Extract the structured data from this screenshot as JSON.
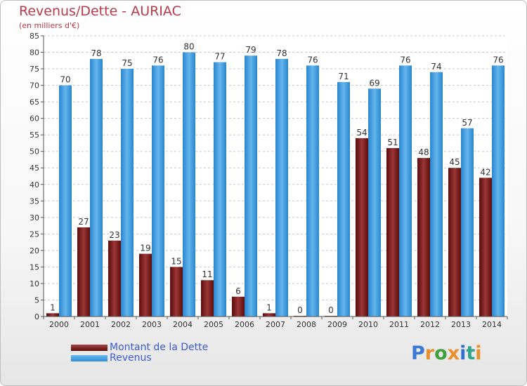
{
  "header": {
    "title": "Revenus/Dette - AURIAC",
    "subtitle": "(en milliers d'€)"
  },
  "brand": {
    "letters": [
      "P",
      "r",
      "o",
      "x",
      "i",
      "t",
      "i"
    ],
    "colors": [
      "#3a78d4",
      "#e8912a",
      "#3fa33a",
      "#e8912a",
      "#2f6fcf",
      "#2fa68a",
      "#e8912a"
    ]
  },
  "chart_data": {
    "type": "bar",
    "title": "Revenus/Dette - AURIAC",
    "ylabel": "(en milliers d'€)",
    "xlabel": "",
    "ylim": [
      0,
      85
    ],
    "ytick_step": 5,
    "grid": true,
    "categories": [
      "2000",
      "2001",
      "2002",
      "2003",
      "2004",
      "2005",
      "2006",
      "2007",
      "2008",
      "2009",
      "2010",
      "2011",
      "2012",
      "2013",
      "2014"
    ],
    "series": [
      {
        "name": "Montant de la Dette",
        "color": "#7a1f1f",
        "values": [
          1,
          27,
          23,
          19,
          15,
          11,
          6,
          1,
          0,
          0,
          54,
          51,
          48,
          45,
          42
        ]
      },
      {
        "name": "Revenus",
        "color": "#3d9ae0",
        "values": [
          70,
          78,
          75,
          76,
          80,
          77,
          79,
          78,
          76,
          71,
          69,
          76,
          74,
          57,
          76
        ]
      }
    ],
    "legend_position": "bottom-left"
  }
}
